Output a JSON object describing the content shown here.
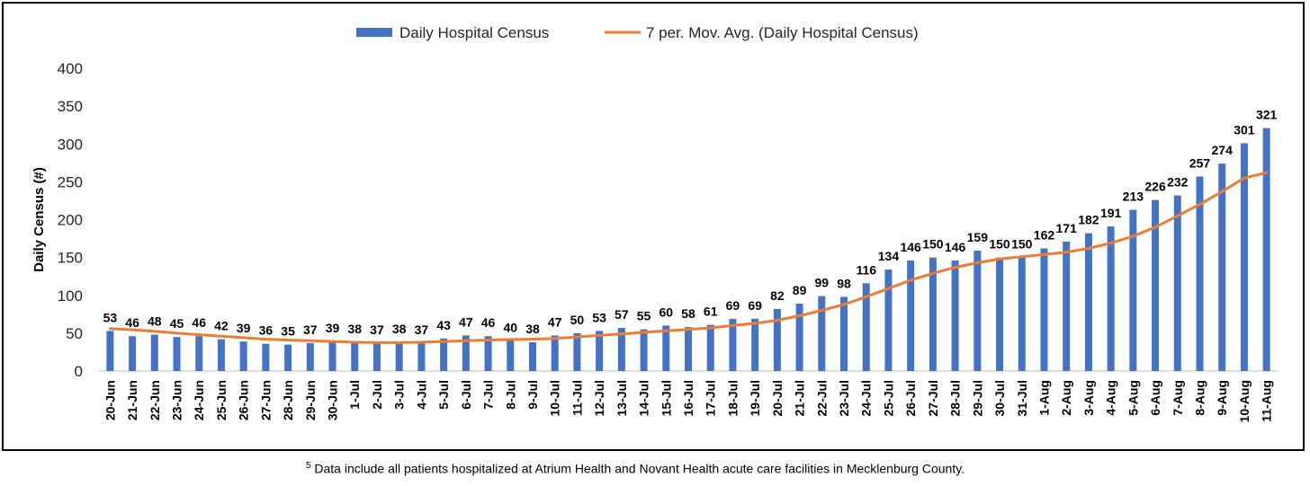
{
  "chart_data": {
    "type": "bar",
    "title": "",
    "xlabel": "",
    "ylabel": "Daily Census (#)",
    "ylim": [
      0,
      400
    ],
    "yticks": [
      0,
      50,
      100,
      150,
      200,
      250,
      300,
      350,
      400
    ],
    "grid": false,
    "legend_position": "top",
    "categories": [
      "20-Jun",
      "21-Jun",
      "22-Jun",
      "23-Jun",
      "24-Jun",
      "25-Jun",
      "26-Jun",
      "27-Jun",
      "28-Jun",
      "29-Jun",
      "30-Jun",
      "1-Jul",
      "2-Jul",
      "3-Jul",
      "4-Jul",
      "5-Jul",
      "6-Jul",
      "7-Jul",
      "8-Jul",
      "9-Jul",
      "10-Jul",
      "11-Jul",
      "12-Jul",
      "13-Jul",
      "14-Jul",
      "15-Jul",
      "16-Jul",
      "17-Jul",
      "18-Jul",
      "19-Jul",
      "20-Jul",
      "21-Jul",
      "22-Jul",
      "23-Jul",
      "24-Jul",
      "25-Jul",
      "26-Jul",
      "27-Jul",
      "28-Jul",
      "29-Jul",
      "30-Jul",
      "31-Jul",
      "1-Aug",
      "2-Aug",
      "3-Aug",
      "4-Aug",
      "5-Aug",
      "6-Aug",
      "7-Aug",
      "8-Aug",
      "9-Aug",
      "10-Aug",
      "11-Aug"
    ],
    "series": [
      {
        "name": "Daily Hospital Census",
        "type": "bar",
        "color": "#4472C4",
        "values": [
          53,
          46,
          48,
          45,
          46,
          42,
          39,
          36,
          35,
          37,
          39,
          38,
          37,
          38,
          37,
          43,
          47,
          46,
          40,
          38,
          47,
          50,
          53,
          57,
          55,
          60,
          58,
          61,
          69,
          69,
          82,
          89,
          99,
          98,
          116,
          134,
          146,
          150,
          146,
          159,
          150,
          150,
          162,
          171,
          182,
          191,
          213,
          226,
          232,
          257,
          274,
          301,
          321
        ]
      },
      {
        "name": "7 per. Mov. Avg. (Daily Hospital Census)",
        "type": "line",
        "color": "#ED7D31",
        "values": [
          56,
          54.5,
          52.5,
          50,
          48,
          46,
          44,
          42,
          41,
          40,
          39,
          38,
          37.5,
          37.5,
          38,
          39,
          40,
          41,
          41.5,
          42,
          43,
          45,
          47,
          49,
          51,
          53,
          55,
          57,
          60,
          63,
          67,
          73,
          80,
          88,
          98,
          109,
          120,
          129,
          137,
          143,
          148,
          151,
          154,
          157,
          162,
          169,
          178,
          190,
          205,
          220,
          237,
          255,
          262
        ]
      }
    ]
  },
  "footnote": {
    "marker": "5",
    "text": "Data include all patients hospitalized at Atrium Health and Novant Health acute care facilities in Mecklenburg County."
  }
}
